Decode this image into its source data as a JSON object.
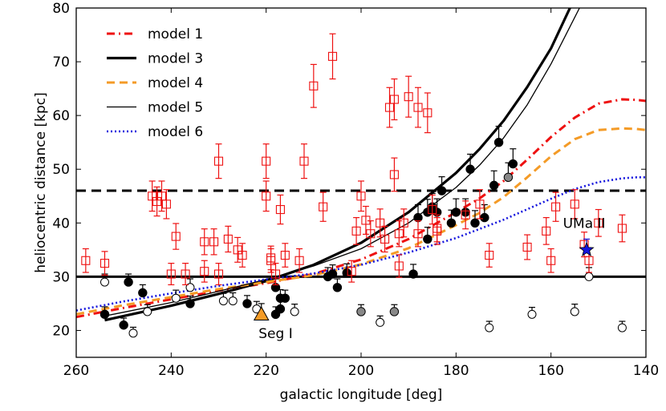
{
  "chart_data": {
    "type": "scatter",
    "title": "",
    "xlabel": "galactic longitude [deg]",
    "ylabel": "heliocentric distance [kpc]",
    "xlim": [
      260,
      140
    ],
    "ylim": [
      15,
      80
    ],
    "xticks": [
      260,
      240,
      220,
      200,
      180,
      160,
      140
    ],
    "yticks": [
      20,
      30,
      40,
      50,
      60,
      70,
      80
    ],
    "xtick_labels": [
      "260",
      "240",
      "220",
      "200",
      "180",
      "160",
      "140"
    ],
    "ytick_labels": [
      "20",
      "30",
      "40",
      "50",
      "60",
      "70",
      "80"
    ],
    "legend_position": "top-left",
    "hlines": [
      {
        "y": 46,
        "style": "dashed",
        "color": "#000000"
      },
      {
        "y": 30,
        "style": "solid",
        "color": "#000000"
      }
    ],
    "series": [
      {
        "name": "model 1",
        "kind": "line",
        "style": "dashdot",
        "color": "#ee1111",
        "x": [
          260,
          250,
          240,
          230,
          220,
          210,
          200,
          190,
          180,
          175,
          170,
          165,
          160,
          155,
          150,
          145,
          142,
          140
        ],
        "y": [
          22.5,
          24.2,
          25.8,
          27.4,
          28.8,
          30.5,
          33.2,
          37.0,
          42.0,
          44.6,
          47.8,
          51.8,
          56.0,
          59.6,
          62.2,
          63.0,
          62.9,
          62.7
        ]
      },
      {
        "name": "model 3",
        "kind": "line",
        "style": "solid-thick",
        "color": "#000000",
        "x": [
          254,
          250,
          240,
          230,
          220,
          210,
          200,
          190,
          180,
          175,
          170,
          165,
          160,
          156
        ],
        "y": [
          21.9,
          22.7,
          24.6,
          26.8,
          29.2,
          32.2,
          36.3,
          42.0,
          49.3,
          53.8,
          59.0,
          65.3,
          72.5,
          80.0
        ]
      },
      {
        "name": "model 4",
        "kind": "line",
        "style": "dashed",
        "color": "#f49b27",
        "x": [
          260,
          250,
          240,
          230,
          220,
          210,
          200,
          190,
          180,
          175,
          170,
          165,
          160,
          155,
          150,
          145,
          142,
          140
        ],
        "y": [
          23.0,
          24.7,
          26.2,
          27.7,
          29.0,
          30.3,
          32.3,
          35.3,
          39.6,
          41.9,
          44.8,
          48.5,
          52.4,
          55.6,
          57.3,
          57.6,
          57.5,
          57.3
        ]
      },
      {
        "name": "model 5",
        "kind": "line",
        "style": "solid-thin",
        "color": "#000000",
        "x": [
          254,
          250,
          240,
          230,
          220,
          210,
          200,
          190,
          180,
          175,
          170,
          165,
          160,
          154
        ],
        "y": [
          22.7,
          23.4,
          25.2,
          27.3,
          29.5,
          32.0,
          35.2,
          40.0,
          46.6,
          50.8,
          55.8,
          62.0,
          69.6,
          80.0
        ]
      },
      {
        "name": "model 6",
        "kind": "line",
        "style": "dotted",
        "color": "#1515dd",
        "x": [
          260,
          250,
          240,
          230,
          220,
          210,
          200,
          190,
          180,
          170,
          160,
          155,
          150,
          145,
          142,
          140
        ],
        "y": [
          23.7,
          25.4,
          26.9,
          28.3,
          29.5,
          30.6,
          32.2,
          34.5,
          37.2,
          40.6,
          44.5,
          46.3,
          47.6,
          48.3,
          48.5,
          48.5
        ]
      },
      {
        "name": "filled circles",
        "kind": "points",
        "marker": "filled-circle",
        "color": "#000000",
        "points": [
          [
            254,
            23
          ],
          [
            249,
            29
          ],
          [
            250,
            21
          ],
          [
            246,
            27
          ],
          [
            236,
            25
          ],
          [
            224,
            25
          ],
          [
            218,
            28
          ],
          [
            217,
            26
          ],
          [
            217,
            24
          ],
          [
            218,
            23
          ],
          [
            216,
            26
          ],
          [
            207,
            30
          ],
          [
            206,
            30.5
          ],
          [
            205,
            28
          ],
          [
            203,
            30.7
          ],
          [
            189,
            30.5
          ],
          [
            188,
            41
          ],
          [
            186,
            37
          ],
          [
            186,
            42
          ],
          [
            185,
            43
          ],
          [
            184,
            42
          ],
          [
            183,
            46
          ],
          [
            181,
            40
          ],
          [
            180,
            42
          ],
          [
            178,
            42
          ],
          [
            177,
            50
          ],
          [
            176,
            40
          ],
          [
            174,
            41
          ],
          [
            172,
            47
          ],
          [
            171,
            55
          ],
          [
            168,
            51
          ]
        ],
        "errors": [
          [
            254,
            1.4
          ],
          [
            249,
            1.5
          ],
          [
            250,
            1.3
          ],
          [
            246,
            1.5
          ],
          [
            236,
            1.4
          ],
          [
            224,
            1.5
          ],
          [
            218,
            1.6
          ],
          [
            217,
            1.6
          ],
          [
            217,
            1.5
          ],
          [
            218,
            1.4
          ],
          [
            216,
            1.5
          ],
          [
            207,
            1.7
          ],
          [
            206,
            1.7
          ],
          [
            205,
            1.6
          ],
          [
            203,
            1.7
          ],
          [
            189,
            1.8
          ],
          [
            188,
            2.4
          ],
          [
            186,
            2.2
          ],
          [
            186,
            2.4
          ],
          [
            185,
            2.5
          ],
          [
            184,
            2.5
          ],
          [
            183,
            2.6
          ],
          [
            181,
            2.4
          ],
          [
            180,
            2.5
          ],
          [
            178,
            2.5
          ],
          [
            177,
            2.8
          ],
          [
            176,
            2.3
          ],
          [
            174,
            2.4
          ],
          [
            172,
            2.7
          ],
          [
            171,
            3.0
          ],
          [
            168,
            2.8
          ]
        ]
      },
      {
        "name": "open circles",
        "kind": "points",
        "marker": "open-circle",
        "color": "#000000",
        "points": [
          [
            254,
            29
          ],
          [
            248,
            19.5
          ],
          [
            245,
            23.5
          ],
          [
            239,
            26
          ],
          [
            236,
            28
          ],
          [
            229,
            25.5
          ],
          [
            227,
            25.5
          ],
          [
            222,
            24
          ],
          [
            214,
            23.5
          ],
          [
            196,
            21.5
          ],
          [
            173,
            20.5
          ],
          [
            164,
            23
          ],
          [
            155,
            23.5
          ],
          [
            152,
            30
          ],
          [
            145,
            20.5
          ]
        ],
        "errors": [
          [
            254,
            1.5
          ],
          [
            248,
            1.1
          ],
          [
            245,
            1.3
          ],
          [
            239,
            1.5
          ],
          [
            236,
            1.6
          ],
          [
            229,
            1.4
          ],
          [
            227,
            1.5
          ],
          [
            222,
            1.4
          ],
          [
            214,
            1.4
          ],
          [
            196,
            1.2
          ],
          [
            173,
            1.2
          ],
          [
            164,
            1.3
          ],
          [
            155,
            1.4
          ],
          [
            152,
            1.7
          ],
          [
            145,
            1.2
          ]
        ]
      },
      {
        "name": "grey circles",
        "kind": "points",
        "marker": "grey-circle",
        "color": "#888888",
        "points": [
          [
            200,
            23.5
          ],
          [
            193,
            23.5
          ],
          [
            169,
            48.5
          ]
        ],
        "errors": [
          [
            200,
            1.3
          ],
          [
            193,
            1.3
          ],
          [
            169,
            2.7
          ]
        ]
      },
      {
        "name": "open squares",
        "kind": "points",
        "marker": "open-square",
        "color": "#ee1111",
        "points": [
          [
            258,
            33
          ],
          [
            254,
            32.5
          ],
          [
            242,
            45
          ],
          [
            241,
            43.5
          ],
          [
            239,
            37.5
          ],
          [
            237,
            30.5
          ],
          [
            233,
            36.5
          ],
          [
            233,
            31
          ],
          [
            230,
            30.5
          ],
          [
            230,
            51.5
          ],
          [
            228,
            37
          ],
          [
            226,
            35
          ],
          [
            220,
            45
          ],
          [
            218,
            30.5
          ],
          [
            219,
            33
          ],
          [
            216,
            34
          ],
          [
            213,
            33
          ],
          [
            212,
            51.5
          ],
          [
            210,
            65.5
          ],
          [
            208,
            43
          ],
          [
            206,
            71
          ],
          [
            202,
            31
          ],
          [
            200,
            45
          ],
          [
            198,
            38
          ],
          [
            196,
            40
          ],
          [
            195,
            37
          ],
          [
            193,
            49
          ],
          [
            192,
            32
          ],
          [
            192,
            38
          ],
          [
            191,
            40
          ],
          [
            190,
            63.5
          ],
          [
            188,
            61.5
          ],
          [
            188,
            38
          ],
          [
            186,
            60.5
          ],
          [
            185,
            42.5
          ],
          [
            184,
            38.5
          ],
          [
            184,
            39
          ],
          [
            178,
            41.5
          ],
          [
            175,
            43.5
          ],
          [
            173,
            34
          ],
          [
            165,
            35.5
          ],
          [
            161,
            38.5
          ],
          [
            160,
            33
          ],
          [
            159,
            43
          ],
          [
            155,
            43.5
          ],
          [
            153,
            36
          ],
          [
            152,
            33
          ],
          [
            150,
            40
          ],
          [
            145,
            39
          ],
          [
            193,
            63
          ],
          [
            194,
            61.5
          ],
          [
            199,
            40.5
          ],
          [
            201,
            38.5
          ],
          [
            220,
            51.5
          ],
          [
            219,
            33.5
          ],
          [
            217,
            42.5
          ],
          [
            225,
            34
          ],
          [
            231,
            36.5
          ],
          [
            244,
            45
          ],
          [
            243,
            44
          ],
          [
            240,
            30.5
          ]
        ],
        "errors": [
          [
            258,
            2.2
          ],
          [
            254,
            2.2
          ],
          [
            242,
            2.8
          ],
          [
            241,
            2.7
          ],
          [
            239,
            2.4
          ],
          [
            237,
            2.0
          ],
          [
            233,
            2.4
          ],
          [
            233,
            2.0
          ],
          [
            230,
            2.0
          ],
          [
            230,
            3.2
          ],
          [
            228,
            2.4
          ],
          [
            226,
            2.3
          ],
          [
            220,
            2.8
          ],
          [
            218,
            2.0
          ],
          [
            219,
            2.2
          ],
          [
            216,
            2.2
          ],
          [
            213,
            2.2
          ],
          [
            212,
            3.2
          ],
          [
            210,
            4.0
          ],
          [
            208,
            2.7
          ],
          [
            206,
            4.2
          ],
          [
            202,
            2.0
          ],
          [
            200,
            2.8
          ],
          [
            198,
            2.4
          ],
          [
            196,
            2.6
          ],
          [
            195,
            2.4
          ],
          [
            193,
            3.1
          ],
          [
            192,
            2.1
          ],
          [
            192,
            2.4
          ],
          [
            191,
            2.6
          ],
          [
            190,
            3.8
          ],
          [
            188,
            3.7
          ],
          [
            188,
            2.4
          ],
          [
            186,
            3.7
          ],
          [
            185,
            2.7
          ],
          [
            184,
            2.5
          ],
          [
            184,
            2.5
          ],
          [
            178,
            2.6
          ],
          [
            175,
            2.7
          ],
          [
            173,
            2.2
          ],
          [
            165,
            2.3
          ],
          [
            161,
            2.5
          ],
          [
            160,
            2.2
          ],
          [
            159,
            2.7
          ],
          [
            155,
            2.7
          ],
          [
            153,
            2.3
          ],
          [
            152,
            2.2
          ],
          [
            150,
            2.5
          ],
          [
            145,
            2.5
          ],
          [
            193,
            3.8
          ],
          [
            194,
            3.7
          ],
          [
            199,
            2.6
          ],
          [
            201,
            2.5
          ],
          [
            220,
            3.2
          ],
          [
            219,
            2.2
          ],
          [
            217,
            2.7
          ],
          [
            225,
            2.2
          ],
          [
            231,
            2.4
          ],
          [
            244,
            2.8
          ],
          [
            243,
            2.7
          ],
          [
            240,
            2.0
          ]
        ]
      },
      {
        "name": "Seg I",
        "kind": "points",
        "marker": "triangle",
        "color": "#f49b27",
        "points": [
          [
            221,
            23
          ]
        ],
        "errors": [
          [
            221,
            2
          ]
        ]
      },
      {
        "name": "UMa II",
        "kind": "points",
        "marker": "star",
        "color": "#1515dd",
        "points": [
          [
            152.5,
            35
          ]
        ],
        "errors": [
          [
            152.5,
            2
          ]
        ]
      }
    ],
    "legend": [
      {
        "label": "model 1",
        "style": "dashdot",
        "color": "#ee1111"
      },
      {
        "label": "model 3",
        "style": "solid-thick",
        "color": "#000000"
      },
      {
        "label": "model 4",
        "style": "dashed",
        "color": "#f49b27"
      },
      {
        "label": "model 5",
        "style": "solid-thin",
        "color": "#000000"
      },
      {
        "label": "model 6",
        "style": "dotted",
        "color": "#1515dd"
      }
    ],
    "annotations": [
      {
        "text": "Seg I",
        "x": 218,
        "y": 19.5
      },
      {
        "text": "UMa II",
        "x": 153,
        "y": 40
      }
    ]
  }
}
